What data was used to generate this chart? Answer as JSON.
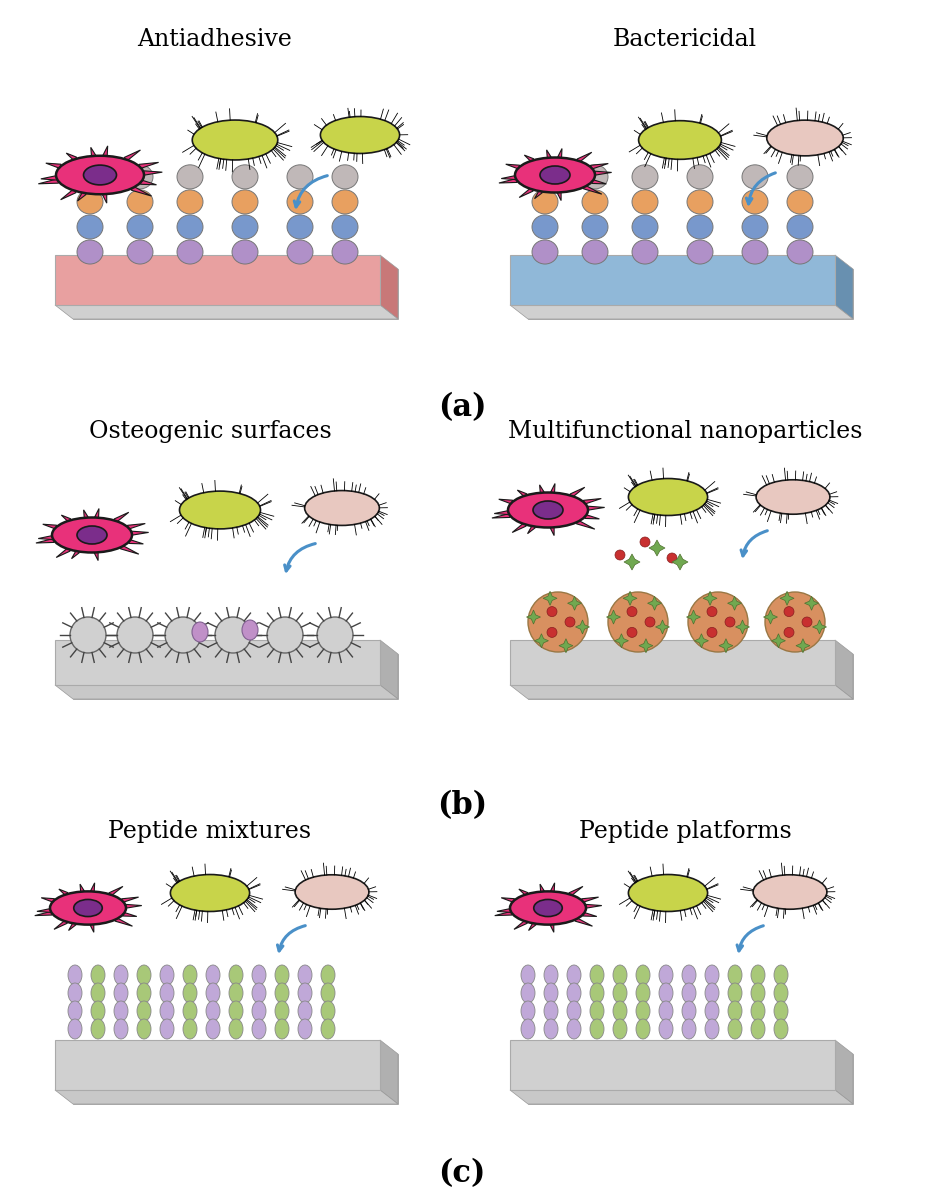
{
  "background_color": "#ffffff",
  "panel_labels": [
    "(a)",
    "(b)",
    "(c)"
  ],
  "panel_label_fontsize": 22,
  "panel_titles": {
    "antiadhesive": "Antiadhesive",
    "bactericidal": "Bactericidal",
    "osteogenic": "Osteogenic surfaces",
    "multifunctional": "Multifunctional nanoparticles",
    "peptide_mix": "Peptide mixtures",
    "peptide_plat": "Peptide platforms"
  },
  "title_fontsize": 17,
  "colors": {
    "cell_body": "#e8317a",
    "cell_nucleus": "#7b2d8b",
    "bacteria_yellow": "#c8d44a",
    "bacteria_pink": "#e8c8c0",
    "arrow_blue": "#4a90c8",
    "platform_pink_top": "#e8a0a0",
    "platform_pink_side": "#c87878",
    "platform_blue_top": "#90b8d8",
    "platform_blue_side": "#6890b0",
    "platform_gray_top": "#d0d0d0",
    "platform_gray_side": "#b0b0b0",
    "platform_base": "#c8c8c8",
    "sphere_gray": "#c0b8b8",
    "sphere_orange": "#e8a060",
    "sphere_blue": "#7898cc",
    "sphere_purple": "#b090c8",
    "spiky_color": "#d0d0d0",
    "spiky_purple": "#c090c8",
    "nano_orange": "#d89060",
    "nano_green": "#70a850",
    "nano_red": "#c83030",
    "peptide_lavender": "#c0a8d8",
    "peptide_green": "#a8c878"
  }
}
